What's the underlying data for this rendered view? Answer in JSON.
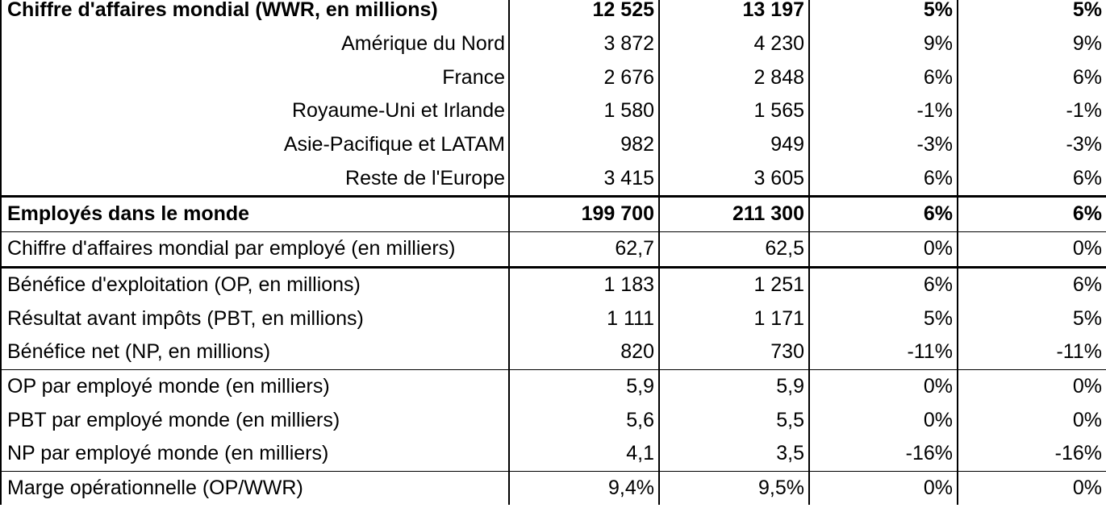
{
  "rows": [
    {
      "label": "Chiffre d'affaires mondial (WWR, en millions)",
      "a": "12 525",
      "b": "13 197",
      "c": "5%",
      "d": "5%"
    },
    {
      "label": "Amérique du Nord",
      "a": "3 872",
      "b": "4 230",
      "c": "9%",
      "d": "9%"
    },
    {
      "label": "France",
      "a": "2 676",
      "b": "2 848",
      "c": "6%",
      "d": "6%"
    },
    {
      "label": "Royaume-Uni et Irlande",
      "a": "1 580",
      "b": "1 565",
      "c": "-1%",
      "d": "-1%"
    },
    {
      "label": "Asie-Pacifique et LATAM",
      "a": "982",
      "b": "949",
      "c": "-3%",
      "d": "-3%"
    },
    {
      "label": "Reste de l'Europe",
      "a": "3 415",
      "b": "3 605",
      "c": "6%",
      "d": "6%"
    },
    {
      "label": "Employés dans le monde",
      "a": "199 700",
      "b": "211 300",
      "c": "6%",
      "d": "6%"
    },
    {
      "label": "Chiffre d'affaires mondial par employé (en milliers)",
      "a": "62,7",
      "b": "62,5",
      "c": "0%",
      "d": "0%"
    },
    {
      "label": "Bénéfice d'exploitation (OP, en millions)",
      "a": "1 183",
      "b": "1 251",
      "c": "6%",
      "d": "6%"
    },
    {
      "label": "Résultat avant impôts (PBT, en millions)",
      "a": "1 111",
      "b": "1 171",
      "c": "5%",
      "d": "5%"
    },
    {
      "label": "Bénéfice net (NP, en millions)",
      "a": "820",
      "b": "730",
      "c": "-11%",
      "d": "-11%"
    },
    {
      "label": "OP par employé monde (en milliers)",
      "a": "5,9",
      "b": "5,9",
      "c": "0%",
      "d": "0%"
    },
    {
      "label": "PBT par employé monde (en milliers)",
      "a": "5,6",
      "b": "5,5",
      "c": "0%",
      "d": "0%"
    },
    {
      "label": "NP par employé monde (en milliers)",
      "a": "4,1",
      "b": "3,5",
      "c": "-16%",
      "d": "-16%"
    },
    {
      "label": "Marge opérationnelle (OP/WWR)",
      "a": "9,4%",
      "b": "9,5%",
      "c": "0%",
      "d": "0%"
    }
  ]
}
